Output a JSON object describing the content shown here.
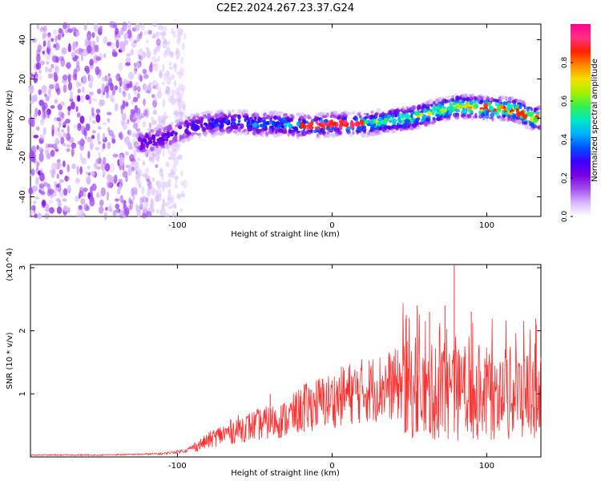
{
  "title": "C2E2.2024.267.23.37.G24",
  "chart_data": [
    {
      "type": "heatmap",
      "xlabel": "Height of straight line (km)",
      "ylabel": "Frequency (Hz)",
      "xlim": [
        -195,
        135
      ],
      "ylim": [
        -50,
        48
      ],
      "x_ticks": [
        -100,
        0,
        100
      ],
      "y_ticks": [
        -40,
        -20,
        0,
        20,
        40
      ],
      "colorbar": {
        "label": "Normalized spectral amplitude",
        "range": [
          0,
          1
        ],
        "ticks": [
          0.0,
          0.2,
          0.4,
          0.6,
          0.8
        ],
        "colormap": [
          "#ffffff",
          "#d7b8ff",
          "#a24cf0",
          "#7a00e0",
          "#3a00ff",
          "#0050ff",
          "#00b0ff",
          "#00e8c8",
          "#30f050",
          "#a8f000",
          "#f0e000",
          "#ff8800",
          "#ff2000",
          "#ff3080",
          "#ff0090"
        ]
      },
      "ridge": {
        "x": [
          -125,
          -110,
          -100,
          -90,
          -80,
          -70,
          -60,
          -50,
          -40,
          -30,
          -20,
          -10,
          0,
          10,
          20,
          30,
          40,
          50,
          60,
          70,
          80,
          90,
          100,
          110,
          120,
          130
        ],
        "frequency": [
          -13,
          -10,
          -7,
          -4,
          -3,
          -2,
          -2,
          -3,
          -3,
          -3,
          -4,
          -4,
          -3,
          -3,
          -3,
          -2,
          -1,
          0,
          2,
          4,
          6,
          6,
          5,
          5,
          4,
          0
        ]
      },
      "noise_region_x": [
        -195,
        -95
      ]
    },
    {
      "type": "line",
      "xlabel": "Height of straight line (km)",
      "ylabel": "SNR (10 * v/v)",
      "y_multiplier": "(x10^4)",
      "xlim": [
        -195,
        135
      ],
      "ylim": [
        0,
        3.05
      ],
      "x_ticks": [
        -100,
        0,
        100
      ],
      "y_ticks": [
        1,
        2,
        3
      ],
      "color": "#ff3030",
      "envelope": {
        "x": [
          -195,
          -150,
          -110,
          -95,
          -85,
          -75,
          -60,
          -50,
          -40,
          -30,
          -20,
          -10,
          0,
          10,
          20,
          30,
          40,
          50,
          60,
          70,
          80,
          90,
          100,
          110,
          120,
          135
        ],
        "y": [
          0.03,
          0.03,
          0.05,
          0.1,
          0.2,
          0.32,
          0.45,
          0.5,
          0.55,
          0.6,
          0.75,
          0.85,
          0.9,
          1.0,
          1.05,
          1.1,
          1.15,
          1.1,
          1.0,
          1.05,
          1.0,
          1.0,
          1.0,
          1.0,
          1.0,
          1.0
        ]
      },
      "spikes": [
        {
          "x": 79,
          "y": 3.05
        },
        {
          "x": 73,
          "y": 2.4
        },
        {
          "x": 55,
          "y": 2.4
        },
        {
          "x": 48,
          "y": 2.25
        },
        {
          "x": 63,
          "y": 2.3
        },
        {
          "x": 90,
          "y": 2.3
        },
        {
          "x": 132,
          "y": 2.1
        },
        {
          "x": -18,
          "y": 1.15
        },
        {
          "x": -40,
          "y": 1.0
        }
      ]
    }
  ]
}
